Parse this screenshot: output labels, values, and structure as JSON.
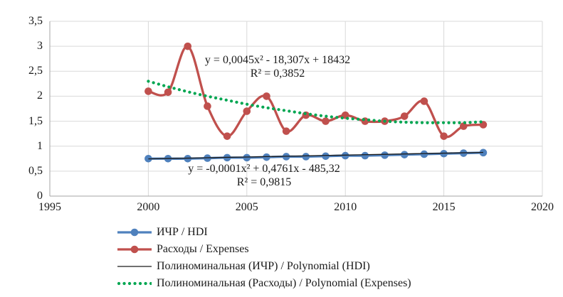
{
  "chart_data": {
    "type": "line",
    "title": "",
    "xlabel": "",
    "ylabel": "",
    "x": [
      2000,
      2001,
      2002,
      2003,
      2004,
      2005,
      2006,
      2007,
      2008,
      2009,
      2010,
      2011,
      2012,
      2013,
      2014,
      2015,
      2016,
      2017
    ],
    "series": [
      {
        "name": "ИЧР / HDI",
        "color": "#4F81BD",
        "style": "line-markers",
        "values": [
          0.75,
          0.75,
          0.75,
          0.76,
          0.77,
          0.77,
          0.78,
          0.79,
          0.79,
          0.8,
          0.81,
          0.81,
          0.82,
          0.83,
          0.84,
          0.85,
          0.86,
          0.87
        ]
      },
      {
        "name": "Расходы / Expenses",
        "color": "#C0504D",
        "style": "line-markers",
        "values": [
          2.1,
          2.08,
          3.0,
          1.8,
          1.2,
          1.7,
          2.0,
          1.3,
          1.62,
          1.5,
          1.62,
          1.5,
          1.5,
          1.6,
          1.9,
          1.2,
          1.4,
          1.43
        ]
      },
      {
        "name": "Полиноминальная (ИЧР) / Polynomial (HDI)",
        "color": "#1a1a1a",
        "style": "thin-line",
        "values": [
          0.745,
          0.753,
          0.76,
          0.768,
          0.776,
          0.783,
          0.791,
          0.798,
          0.806,
          0.814,
          0.821,
          0.829,
          0.837,
          0.844,
          0.852,
          0.86,
          0.867,
          0.875
        ]
      },
      {
        "name": "Полиноминальная (Расходы) / Polynomial (Expenses)",
        "color": "#00A651",
        "style": "dotted",
        "values": [
          2.3,
          2.19,
          2.09,
          2.0,
          1.92,
          1.84,
          1.77,
          1.71,
          1.65,
          1.6,
          1.56,
          1.53,
          1.5,
          1.48,
          1.47,
          1.47,
          1.47,
          1.49
        ]
      }
    ],
    "xlim": [
      1995,
      2020
    ],
    "ylim": [
      0,
      3.5
    ],
    "x_ticks": [
      "1995",
      "2000",
      "2005",
      "2010",
      "2015",
      "2020"
    ],
    "y_ticks": [
      "0",
      "0,5",
      "1",
      "1,5",
      "2",
      "2,5",
      "3",
      "3,5"
    ],
    "grid": true,
    "legend_position": "bottom-left",
    "annotations": [
      {
        "lines": [
          "y = 0,0045x² - 18,307x + 18432",
          "R² = 0,3852"
        ]
      },
      {
        "lines": [
          "y = -0,0001x² + 0,4761x - 485,32",
          "R² = 0,9815"
        ]
      }
    ],
    "colors": {
      "gridline": "#D9D9D9",
      "axis": "#A6A6A6",
      "text": "#1a1a1a"
    }
  }
}
